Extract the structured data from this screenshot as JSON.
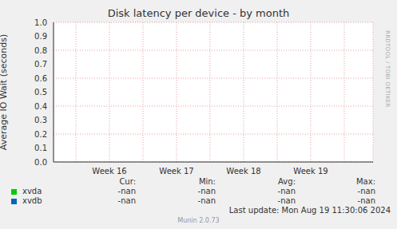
{
  "chart_data": {
    "type": "line",
    "title": "Disk latency per device - by month",
    "y_label": "Average IO Wait (seconds)",
    "categories": [
      null,
      "Week 16",
      null,
      "Week 17",
      null,
      "Week 18",
      null,
      "Week 19",
      null
    ],
    "series": [
      {
        "name": "xvda",
        "color": "#00cc00",
        "values": [
          null,
          null,
          null,
          null,
          null,
          null,
          null,
          null,
          null
        ],
        "stats": [
          "-nan",
          "-nan",
          "-nan",
          "-nan"
        ]
      },
      {
        "name": "xvdb",
        "color": "#0066b3",
        "values": [
          null,
          null,
          null,
          null,
          null,
          null,
          null,
          null,
          null
        ],
        "stats": [
          "-nan",
          "-nan",
          "-nan",
          "-nan"
        ]
      }
    ],
    "stats_columns": [
      "Cur:",
      "Min:",
      "Avg:",
      "Max:"
    ],
    "ylim": [
      0,
      1
    ],
    "yticks": [
      {
        "value": 0,
        "label": "0.0"
      },
      0.1,
      0.2,
      0.3,
      0.4,
      0.5,
      0.6,
      0.7,
      0.8,
      0.9,
      {
        "value": 1,
        "label": "1.0"
      }
    ],
    "grid": true,
    "legend": "bottom",
    "footer": "Last update: Mon Aug 19 11:30:06 2024",
    "credit": "Munin 2.0.73",
    "side_text": "RRDTOOL / TOBI OETIKER"
  }
}
